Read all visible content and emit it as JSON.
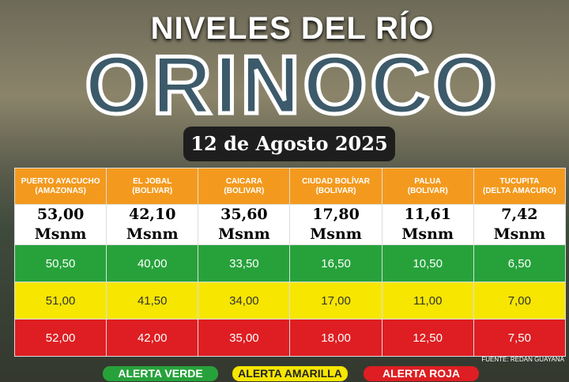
{
  "header": {
    "title": "NIVELES DEL RÍO",
    "river": "ORINOCO",
    "date": "12 de Agosto 2025"
  },
  "table": {
    "columns": [
      {
        "name": "PUERTO AYACUCHO",
        "state": "(AMAZONAS)"
      },
      {
        "name": "EL JOBAL",
        "state": "(BOLIVAR)"
      },
      {
        "name": "CAICARA",
        "state": "(BOLIVAR)"
      },
      {
        "name": "CIUDAD BOLÍVAR",
        "state": "(BOLIVAR)"
      },
      {
        "name": "PALUA",
        "state": "(BOLIVAR)"
      },
      {
        "name": "TUCUPITA",
        "state": "(DELTA AMACURO)"
      }
    ],
    "levels": [
      {
        "value": "53,00",
        "unit": "Msnm"
      },
      {
        "value": "42,10",
        "unit": "Msnm"
      },
      {
        "value": "35,60",
        "unit": "Msnm"
      },
      {
        "value": "17,80",
        "unit": "Msnm"
      },
      {
        "value": "11,61",
        "unit": "Msnm"
      },
      {
        "value": "7,42",
        "unit": "Msnm"
      }
    ],
    "rows": [
      [
        "50,50",
        "40,00",
        "33,50",
        "16,50",
        "10,50",
        "6,50"
      ],
      [
        "51,00",
        "41,50",
        "34,00",
        "17,00",
        "11,00",
        "7,00"
      ],
      [
        "52,00",
        "42,00",
        "35,00",
        "18,00",
        "12,50",
        "7,50"
      ]
    ]
  },
  "source": "FUENTE: REDAN GUAYANA",
  "legend": [
    "ALERTA VERDE",
    "ALERTA AMARILLA",
    "ALERTA ROJA"
  ]
}
